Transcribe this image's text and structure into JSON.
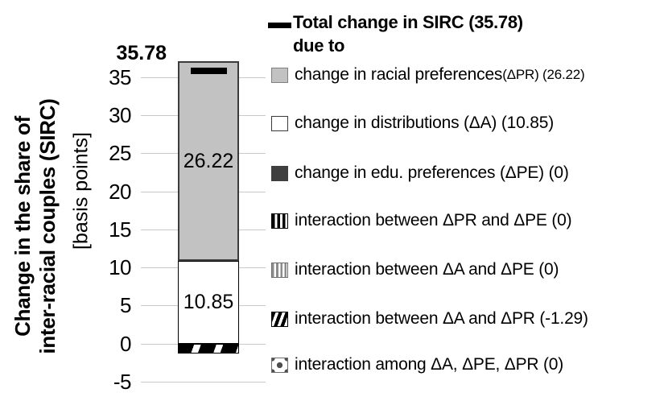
{
  "chart_data": {
    "type": "bar",
    "stacked": true,
    "title": "",
    "ylabel_line1": "Change in the share of",
    "ylabel_line2": "inter-racial couples (SIRC)",
    "ylabel_unit": "[basis points]",
    "ylim": [
      -5,
      37.07
    ],
    "yticks": [
      35,
      30,
      25,
      20,
      15,
      10,
      5,
      0,
      -5
    ],
    "grid": true,
    "legend_position": "right",
    "total_marker": {
      "label": "Total change in SIRC",
      "value": 35.78
    },
    "series": [
      {
        "name": "change in racial preferences (ΔPR)",
        "value": 26.22
      },
      {
        "name": "change in distributions (ΔA)",
        "value": 10.85
      },
      {
        "name": "change in edu. preferences (ΔPE)",
        "value": 0
      },
      {
        "name": "interaction between ΔPR and ΔPE",
        "value": 0
      },
      {
        "name": "interaction between ΔA and ΔPE",
        "value": 0
      },
      {
        "name": "interaction between ΔA and ΔPR",
        "value": -1.29
      },
      {
        "name": "interaction among ΔA, ΔPE, ΔPR",
        "value": 0
      }
    ]
  },
  "legend": {
    "title_line1": "Total change in SIRC (35.78)",
    "title_line2": "due to",
    "items": [
      {
        "text": "change in racial preferences",
        "note": " (ΔPR) (26.22)",
        "swatch": "gray-fill"
      },
      {
        "text": "change in distributions (ΔA) (10.85)",
        "note": "",
        "swatch": "white-fill"
      },
      {
        "text": "change in edu. preferences (ΔPE) (0)",
        "note": "",
        "swatch": "dark-fill"
      },
      {
        "text": "interaction between ΔPR and ΔPE (0)",
        "note": "",
        "swatch": "black-vertical-stripes"
      },
      {
        "text": "interaction between ΔA and ΔPE (0)",
        "note": "",
        "swatch": "gray-vertical-stripes"
      },
      {
        "text": "interaction between ΔA and ΔPR (-1.29)",
        "note": "",
        "swatch": "black-diagonal-stripes"
      },
      {
        "text": "interaction among ΔA, ΔPE, ΔPR (0)",
        "note": "",
        "swatch": "dotted-checker"
      }
    ]
  }
}
